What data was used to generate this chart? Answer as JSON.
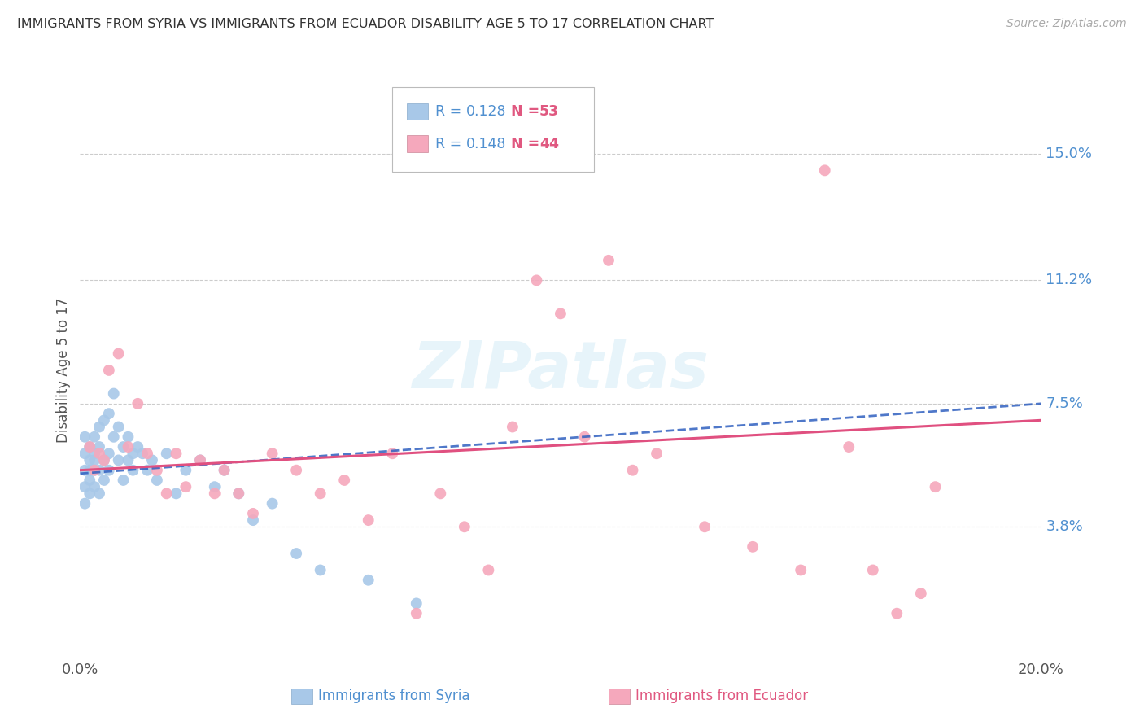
{
  "title": "IMMIGRANTS FROM SYRIA VS IMMIGRANTS FROM ECUADOR DISABILITY AGE 5 TO 17 CORRELATION CHART",
  "source": "Source: ZipAtlas.com",
  "ylabel": "Disability Age 5 to 17",
  "xlim": [
    0.0,
    0.2
  ],
  "ylim": [
    0.0,
    0.17
  ],
  "yticks": [
    0.038,
    0.075,
    0.112,
    0.15
  ],
  "ytick_labels": [
    "3.8%",
    "7.5%",
    "11.2%",
    "15.0%"
  ],
  "xticks": [
    0.0,
    0.2
  ],
  "xtick_labels": [
    "0.0%",
    "20.0%"
  ],
  "syria_R": 0.128,
  "syria_N": 53,
  "ecuador_R": 0.148,
  "ecuador_N": 44,
  "syria_color": "#a8c8e8",
  "ecuador_color": "#f5a8bc",
  "syria_line_color": "#3060c0",
  "ecuador_line_color": "#e05080",
  "background_color": "#ffffff",
  "syria_x": [
    0.001,
    0.001,
    0.001,
    0.001,
    0.001,
    0.002,
    0.002,
    0.002,
    0.002,
    0.002,
    0.003,
    0.003,
    0.003,
    0.003,
    0.003,
    0.004,
    0.004,
    0.004,
    0.004,
    0.005,
    0.005,
    0.005,
    0.006,
    0.006,
    0.006,
    0.007,
    0.007,
    0.008,
    0.008,
    0.009,
    0.009,
    0.01,
    0.01,
    0.011,
    0.011,
    0.012,
    0.013,
    0.014,
    0.015,
    0.016,
    0.018,
    0.02,
    0.022,
    0.025,
    0.028,
    0.03,
    0.033,
    0.036,
    0.04,
    0.045,
    0.05,
    0.06,
    0.07
  ],
  "syria_y": [
    0.055,
    0.06,
    0.065,
    0.05,
    0.045,
    0.058,
    0.062,
    0.048,
    0.055,
    0.052,
    0.06,
    0.055,
    0.065,
    0.05,
    0.058,
    0.068,
    0.062,
    0.055,
    0.048,
    0.07,
    0.058,
    0.052,
    0.072,
    0.06,
    0.055,
    0.078,
    0.065,
    0.068,
    0.058,
    0.062,
    0.052,
    0.065,
    0.058,
    0.06,
    0.055,
    0.062,
    0.06,
    0.055,
    0.058,
    0.052,
    0.06,
    0.048,
    0.055,
    0.058,
    0.05,
    0.055,
    0.048,
    0.04,
    0.045,
    0.03,
    0.025,
    0.022,
    0.015
  ],
  "ecuador_x": [
    0.002,
    0.003,
    0.004,
    0.005,
    0.006,
    0.008,
    0.01,
    0.012,
    0.014,
    0.016,
    0.018,
    0.02,
    0.022,
    0.025,
    0.028,
    0.03,
    0.033,
    0.036,
    0.04,
    0.045,
    0.05,
    0.055,
    0.06,
    0.065,
    0.07,
    0.075,
    0.08,
    0.085,
    0.09,
    0.095,
    0.1,
    0.105,
    0.11,
    0.115,
    0.12,
    0.13,
    0.14,
    0.15,
    0.155,
    0.16,
    0.165,
    0.17,
    0.175,
    0.178
  ],
  "ecuador_y": [
    0.062,
    0.055,
    0.06,
    0.058,
    0.085,
    0.09,
    0.062,
    0.075,
    0.06,
    0.055,
    0.048,
    0.06,
    0.05,
    0.058,
    0.048,
    0.055,
    0.048,
    0.042,
    0.06,
    0.055,
    0.048,
    0.052,
    0.04,
    0.06,
    0.012,
    0.048,
    0.038,
    0.025,
    0.068,
    0.112,
    0.102,
    0.065,
    0.118,
    0.055,
    0.06,
    0.038,
    0.032,
    0.025,
    0.145,
    0.062,
    0.025,
    0.012,
    0.018,
    0.05
  ]
}
